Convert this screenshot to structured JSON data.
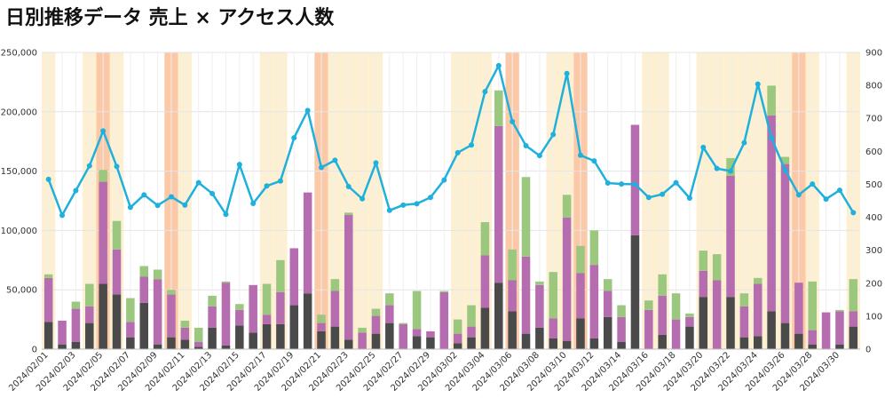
{
  "page": {
    "title": "日別推移データ 売上 × アクセス人数"
  },
  "colors": {
    "dark": "#4a4a4a",
    "purple": "#b56db0",
    "green": "#9bc77f",
    "line": "#1fb0dc",
    "weekend_band": "#fdf0d2",
    "holiday_band": "#fbc9a8",
    "grid": "#e4e4e4"
  },
  "chart_data": {
    "type": "bar",
    "title": "日別推移データ 売上 × アクセス人数",
    "dates": [
      "2024/02/01",
      "2024/02/02",
      "2024/02/03",
      "2024/02/04",
      "2024/02/05",
      "2024/02/06",
      "2024/02/07",
      "2024/02/08",
      "2024/02/09",
      "2024/02/10",
      "2024/02/11",
      "2024/02/12",
      "2024/02/13",
      "2024/02/14",
      "2024/02/15",
      "2024/02/16",
      "2024/02/17",
      "2024/02/18",
      "2024/02/19",
      "2024/02/20",
      "2024/02/21",
      "2024/02/22",
      "2024/02/23",
      "2024/02/24",
      "2024/02/25",
      "2024/02/26",
      "2024/02/27",
      "2024/02/28",
      "2024/02/29",
      "2024/03/01",
      "2024/03/02",
      "2024/03/03",
      "2024/03/04",
      "2024/03/05",
      "2024/03/06",
      "2024/03/07",
      "2024/03/08",
      "2024/03/09",
      "2024/03/10",
      "2024/03/11",
      "2024/03/12",
      "2024/03/13",
      "2024/03/14",
      "2024/03/15",
      "2024/03/16",
      "2024/03/17",
      "2024/03/18",
      "2024/03/19",
      "2024/03/20",
      "2024/03/21",
      "2024/03/22",
      "2024/03/23",
      "2024/03/24",
      "2024/03/25",
      "2024/03/26",
      "2024/03/27",
      "2024/03/28",
      "2024/03/29",
      "2024/03/30",
      "2024/03/31"
    ],
    "x_tick_labels": [
      "2024/02/01",
      "2024/02/03",
      "2024/02/05",
      "2024/02/07",
      "2024/02/09",
      "2024/02/11",
      "2024/02/13",
      "2024/02/15",
      "2024/02/17",
      "2024/02/19",
      "2024/02/21",
      "2024/02/23",
      "2024/02/25",
      "2024/02/27",
      "2024/02/29",
      "2024/03/02",
      "2024/03/04",
      "2024/03/06",
      "2024/03/08",
      "2024/03/10",
      "2024/03/12",
      "2024/03/14",
      "2024/03/16",
      "2024/03/18",
      "2024/03/20",
      "2024/03/22",
      "2024/03/24",
      "2024/03/26",
      "2024/03/28",
      "2024/03/30"
    ],
    "ylim": [
      0,
      250000
    ],
    "y_ticks": [
      "0",
      "50,000",
      "100,000",
      "150,000",
      "200,000",
      "250,000"
    ],
    "y2lim": [
      0,
      900
    ],
    "y2_ticks": [
      "0",
      "100",
      "200",
      "300",
      "400",
      "500",
      "600",
      "700",
      "800",
      "900"
    ],
    "weekend_dates": [
      "2024/02/01",
      "2024/02/04",
      "2024/02/05",
      "2024/02/06",
      "2024/02/10",
      "2024/02/11",
      "2024/02/17",
      "2024/02/18",
      "2024/02/22",
      "2024/02/23",
      "2024/02/24",
      "2024/02/25",
      "2024/03/02",
      "2024/03/03",
      "2024/03/04",
      "2024/03/09",
      "2024/03/10",
      "2024/03/11",
      "2024/03/16",
      "2024/03/17",
      "2024/03/20",
      "2024/03/21",
      "2024/03/22",
      "2024/03/23",
      "2024/03/24",
      "2024/03/25",
      "2024/03/26",
      "2024/03/27",
      "2024/03/28",
      "2024/03/31"
    ],
    "holiday_dates": [
      "2024/02/05",
      "2024/02/10",
      "2024/02/21",
      "2024/03/06",
      "2024/03/11",
      "2024/03/27"
    ],
    "stack_series": [
      {
        "values": [
          23000,
          4000,
          6000,
          22000,
          55000,
          46000,
          10000,
          39000,
          4000,
          10000,
          8000,
          2000,
          18000,
          3000,
          20000,
          14000,
          21000,
          21000,
          37000,
          47000,
          15000,
          19000,
          8000,
          0,
          13000,
          22000,
          0,
          11000,
          10000,
          0,
          5000,
          10000,
          35000,
          56000,
          32000,
          13000,
          18000,
          9000,
          7000,
          26000,
          9000,
          27000,
          6000,
          96000,
          0,
          12000,
          0,
          19000,
          44000,
          0,
          44000,
          10000,
          11000,
          32000,
          22000,
          13000,
          4000,
          0,
          4000,
          19000
        ]
      },
      {
        "values": [
          37000,
          20000,
          28000,
          14000,
          86000,
          38000,
          13000,
          22000,
          55000,
          36000,
          10000,
          4000,
          18000,
          53000,
          13000,
          40000,
          8000,
          27000,
          48000,
          85000,
          7000,
          30000,
          105000,
          14000,
          15000,
          15000,
          21000,
          6000,
          5000,
          48000,
          8000,
          9000,
          44000,
          132000,
          26000,
          65000,
          36000,
          17000,
          104000,
          38000,
          62000,
          22000,
          21000,
          93000,
          33000,
          33000,
          25000,
          8000,
          22000,
          58000,
          102000,
          26000,
          44000,
          165000,
          134000,
          43000,
          12000,
          31000,
          28000,
          13000
        ]
      },
      {
        "values": [
          3000,
          0,
          6000,
          19000,
          10000,
          24000,
          20000,
          9000,
          8000,
          4000,
          6000,
          12000,
          9000,
          1000,
          5000,
          0,
          26000,
          27000,
          0,
          0,
          7000,
          10000,
          2000,
          4000,
          6000,
          10000,
          1000,
          32000,
          0,
          1000,
          12000,
          18000,
          28000,
          30000,
          26000,
          67000,
          3000,
          39000,
          19000,
          23000,
          29000,
          10000,
          10000,
          0,
          8000,
          18000,
          22000,
          3000,
          17000,
          22000,
          15000,
          11000,
          5000,
          25000,
          6000,
          0,
          41000,
          0,
          1000,
          27000
        ]
      }
    ],
    "line_series": {
      "values": [
        515,
        406,
        481,
        556,
        662,
        554,
        430,
        468,
        436,
        462,
        437,
        505,
        472,
        409,
        560,
        442,
        495,
        510,
        641,
        724,
        551,
        573,
        493,
        456,
        565,
        421,
        437,
        441,
        460,
        513,
        596,
        619,
        781,
        860,
        690,
        617,
        587,
        651,
        836,
        588,
        571,
        504,
        501,
        500,
        460,
        470,
        505,
        458,
        612,
        548,
        540,
        626,
        804,
        640,
        543,
        468,
        501,
        455,
        482,
        414
      ]
    }
  }
}
